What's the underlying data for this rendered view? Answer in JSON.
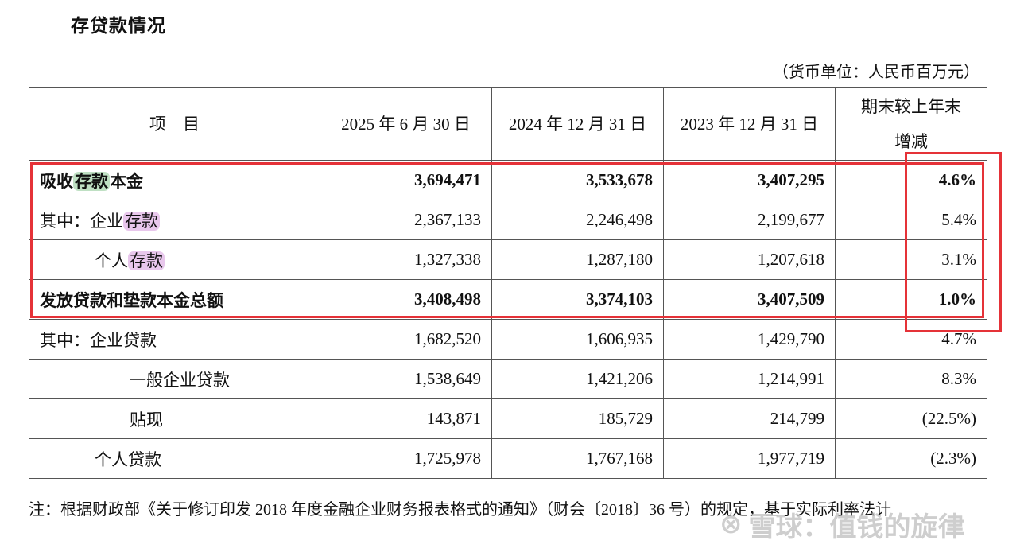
{
  "title": "存贷款情况",
  "unit_note": "（货币单位：人民币百万元）",
  "table": {
    "headers": {
      "item": "项　目",
      "c1": "2025 年 6 月 30 日",
      "c2": "2024 年 12 月 31 日",
      "c3": "2023 年 12 月 31 日",
      "c4a": "期末较上年末",
      "c4b": "增减"
    },
    "rows": [
      {
        "prefix": "吸收",
        "hl": "存款",
        "suffix": "本金",
        "v1": "3,694,471",
        "v2": "3,533,678",
        "v3": "3,407,295",
        "chg": "4.6%"
      },
      {
        "prefix": "其中：企业",
        "hl": "存款",
        "v1": "2,367,133",
        "v2": "2,246,498",
        "v3": "2,199,677",
        "chg": "5.4%"
      },
      {
        "prefix": "个人",
        "hl": "存款",
        "v1": "1,327,338",
        "v2": "1,287,180",
        "v3": "1,207,618",
        "chg": "3.1%"
      },
      {
        "label": "发放贷款和垫款本金总额",
        "v1": "3,408,498",
        "v2": "3,374,103",
        "v3": "3,407,509",
        "chg": "1.0%"
      },
      {
        "label": "其中：企业贷款",
        "v1": "1,682,520",
        "v2": "1,606,935",
        "v3": "1,429,790",
        "chg": "4.7%"
      },
      {
        "label": "一般企业贷款",
        "v1": "1,538,649",
        "v2": "1,421,206",
        "v3": "1,214,991",
        "chg": "8.3%"
      },
      {
        "label": "贴现",
        "v1": "143,871",
        "v2": "185,729",
        "v3": "214,799",
        "chg": "(22.5%)"
      },
      {
        "label": "个人贷款",
        "v1": "1,725,978",
        "v2": "1,767,168",
        "v3": "1,977,719",
        "chg": "(2.3%)"
      }
    ]
  },
  "footnote": "注：根据财政部《关于修订印发 2018 年度金融企业财务报表格式的通知》（财会〔2018〕36 号）的规定，基于实际利率法计",
  "watermark": {
    "logo": "⊗",
    "text": "雪球：值钱的旋律"
  },
  "colors": {
    "annotation_red": "#e53238",
    "highlight_green": "#bfe0c3",
    "highlight_pink": "#e8c7ec"
  }
}
